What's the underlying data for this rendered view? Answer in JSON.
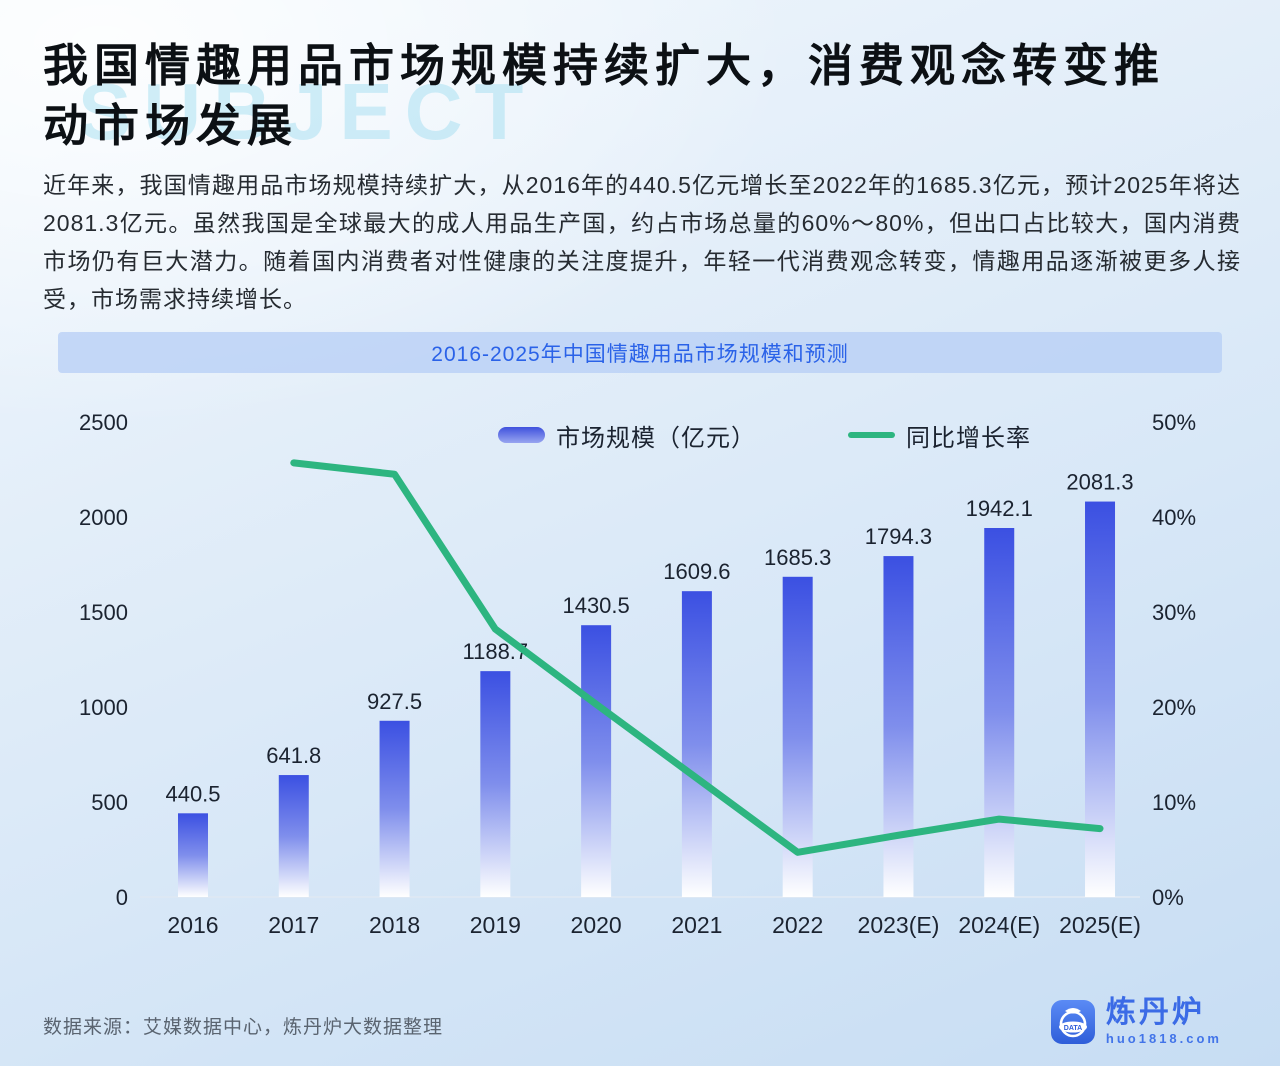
{
  "page": {
    "watermark": "SUBJECT",
    "title": "我国情趣用品市场规模持续扩大，消费观念转变推\n动市场发展",
    "paragraph": "近年来，我国情趣用品市场规模持续扩大，从2016年的440.5亿元增长至2022年的1685.3亿元，预计2025年将达2081.3亿元。虽然我国是全球最大的成人用品生产国，约占市场总量的60%～80%，但出口占比较大，国内消费市场仍有巨大潜力。随着国内消费者对性健康的关注度提升，年轻一代消费观念转变，情趣用品逐渐被更多人接受，市场需求持续增长。",
    "source": "数据来源：艾媒数据中心，炼丹炉大数据整理"
  },
  "logo": {
    "name": "炼丹炉",
    "url": "huo1818.com",
    "badge": "DATA",
    "brand_color": "#3b6be6"
  },
  "chart_data": {
    "type": "bar",
    "title": "2016-2025年中国情趣用品市场规模和预测",
    "categories": [
      "2016",
      "2017",
      "2018",
      "2019",
      "2020",
      "2021",
      "2022",
      "2023(E)",
      "2024(E)",
      "2025(E)"
    ],
    "series": [
      {
        "name": "市场规模（亿元）",
        "type": "bar",
        "axis": "left",
        "values": [
          440.5,
          641.8,
          927.5,
          1188.7,
          1430.5,
          1609.6,
          1685.3,
          1794.3,
          1942.1,
          2081.3
        ]
      },
      {
        "name": "同比增长率",
        "type": "line",
        "axis": "right",
        "unit": "%",
        "values": [
          null,
          45.7,
          44.5,
          28.2,
          20.3,
          12.5,
          4.7,
          6.5,
          8.2,
          7.2
        ]
      }
    ],
    "left_axis": {
      "min": 0,
      "max": 2500,
      "step": 500,
      "tick_labels": [
        "0",
        "500",
        "1000",
        "1500",
        "2000",
        "2500"
      ]
    },
    "right_axis": {
      "min": 0,
      "max": 50,
      "step": 10,
      "tick_labels": [
        "0%",
        "10%",
        "20%",
        "30%",
        "40%",
        "50%"
      ]
    },
    "legend_position": "top",
    "grid": false,
    "colors": {
      "bar_top": "#3b50e2",
      "bar_bottom": "#ffffff",
      "line": "#2db580",
      "label": "#1b2330",
      "axis_line": "#dde8f4"
    }
  }
}
